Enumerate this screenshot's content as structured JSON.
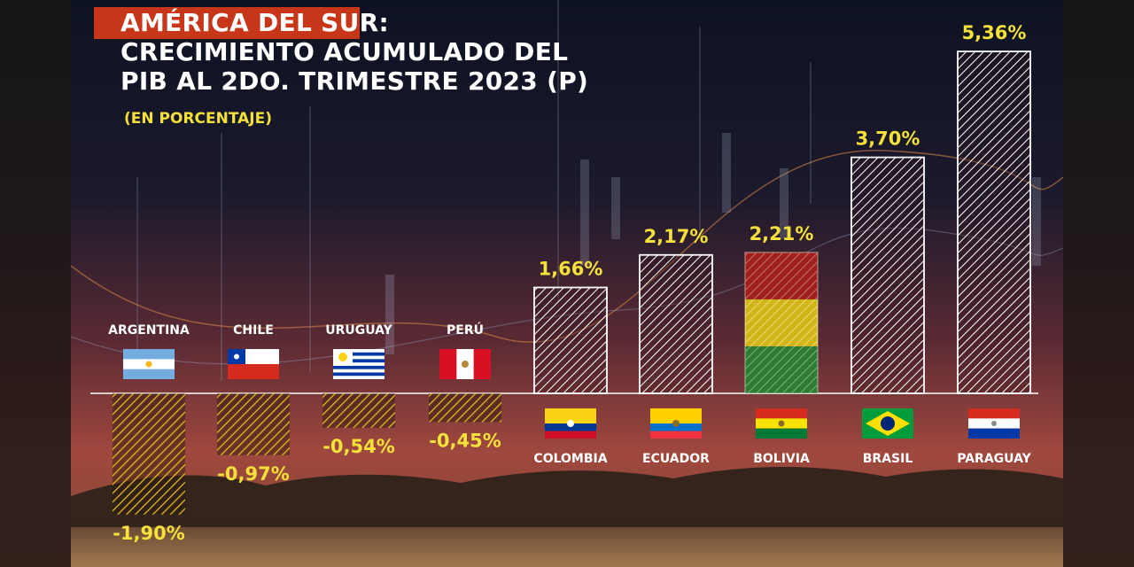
{
  "title": {
    "line1": "AMÉRICA DEL SUR:",
    "line2": "CRECIMIENTO ACUMULADO DEL",
    "line3": "PIB AL 2DO. TRIMESTRE 2023 (P)",
    "subtitle": "(EN PORCENTAJE)"
  },
  "colors": {
    "title_accent": "#c8361a",
    "value_text": "#f5e13a",
    "positive_bar": "#ffffff",
    "negative_bar": "#e8c21a"
  },
  "chart_data": {
    "type": "bar",
    "categories": [
      "ARGENTINA",
      "CHILE",
      "URUGUAY",
      "PERÚ",
      "COLOMBIA",
      "ECUADOR",
      "BOLIVIA",
      "BRASIL",
      "PARAGUAY"
    ],
    "values": [
      -1.9,
      -0.97,
      -0.54,
      -0.45,
      1.66,
      2.17,
      2.21,
      3.7,
      5.36
    ],
    "value_labels": [
      "-1,90%",
      "-0,97%",
      "-0,54%",
      "-0,45%",
      "1,66%",
      "2,17%",
      "2,21%",
      "3,70%",
      "5,36%"
    ],
    "flags": [
      "argentina-flag",
      "chile-flag",
      "uruguay-flag",
      "peru-flag",
      "colombia-flag",
      "ecuador-flag",
      "bolivia-flag",
      "brazil-flag",
      "paraguay-flag"
    ],
    "title": "AMÉRICA DEL SUR: CRECIMIENTO ACUMULADO DEL PIB AL 2DO. TRIMESTRE 2023 (P)",
    "ylabel": "",
    "xlabel": "",
    "ylim": [
      -2,
      5.5
    ],
    "grid": false,
    "legend": "none"
  }
}
